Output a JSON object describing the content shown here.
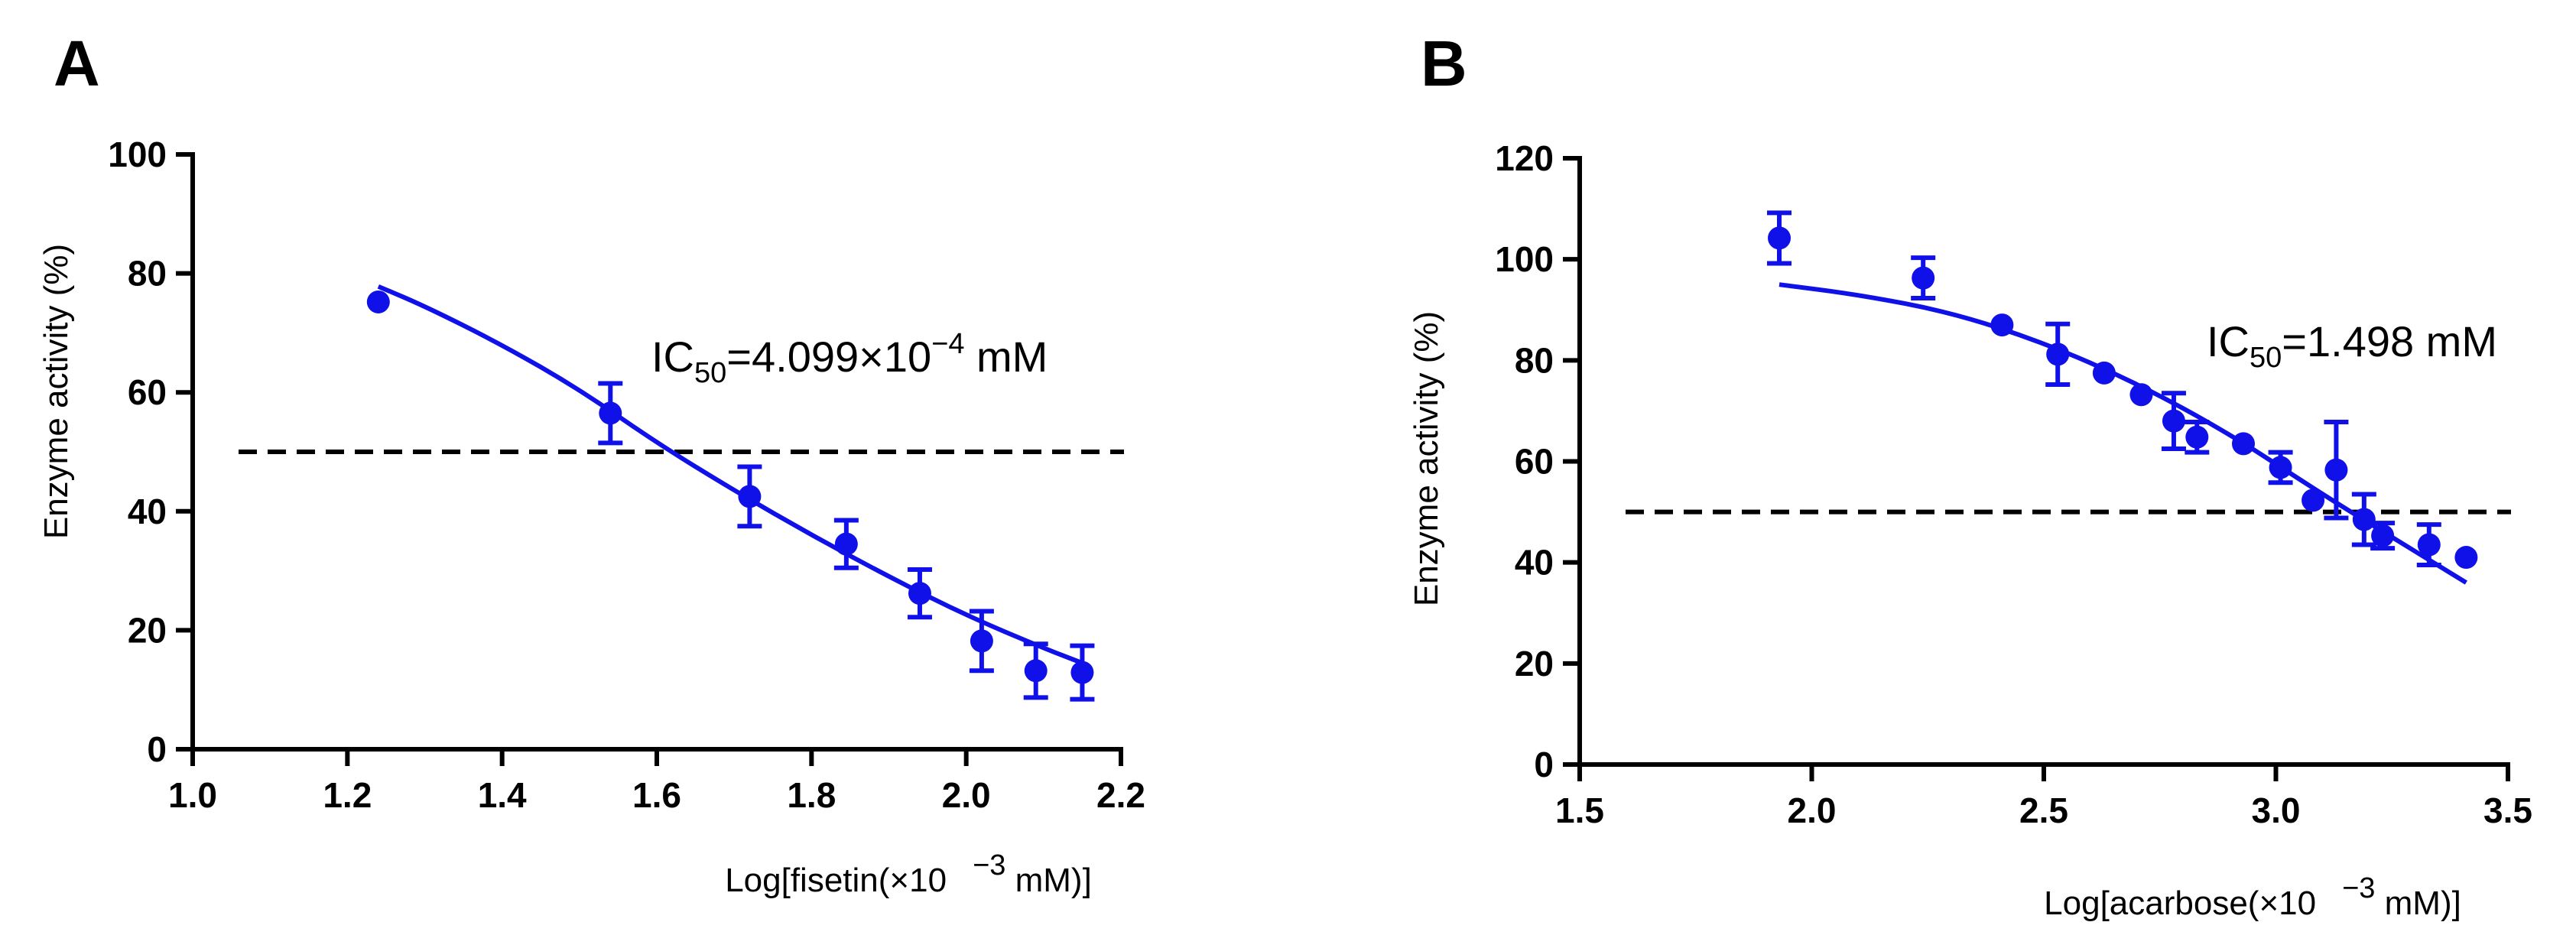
{
  "colors": {
    "series": "#1010e8",
    "axis": "#000000"
  },
  "chart_data": [
    {
      "type": "scatter",
      "panel_label": "A",
      "xlabel": "Log[fisetin(×10 −3 mM)]",
      "xlabel_parts": {
        "pre": "Log[fisetin(×10",
        "sup": "−3",
        "post": " mM)]"
      },
      "ylabel": "Enzyme activity (%)",
      "xlim": [
        1.0,
        2.2
      ],
      "ylim": [
        0,
        100
      ],
      "x_ticks": [
        "1.0",
        "1.2",
        "1.4",
        "1.6",
        "1.8",
        "2.0",
        "2.2"
      ],
      "y_ticks": [
        "0",
        "20",
        "40",
        "60",
        "80",
        "100"
      ],
      "reference_line_y": 50,
      "annotation": {
        "pre": "IC",
        "sub": "50",
        "mid": "=4.099×10",
        "sup": "−4",
        "post": " mM"
      },
      "points": [
        {
          "x": 1.24,
          "y": 75.2,
          "err": 0
        },
        {
          "x": 1.54,
          "y": 56.5,
          "err": 5
        },
        {
          "x": 1.72,
          "y": 42.5,
          "err": 5
        },
        {
          "x": 1.845,
          "y": 34.5,
          "err": 4
        },
        {
          "x": 1.94,
          "y": 26.2,
          "err": 4
        },
        {
          "x": 2.02,
          "y": 18.2,
          "err": 5
        },
        {
          "x": 2.09,
          "y": 13.2,
          "err": 4.5
        },
        {
          "x": 2.15,
          "y": 12.9,
          "err": 4.5
        }
      ],
      "fit_curve": {
        "x": [
          1.24,
          1.3,
          1.4,
          1.5,
          1.6,
          1.7,
          1.8,
          1.9,
          2.0,
          2.1,
          2.15
        ],
        "y": [
          77.8,
          74.5,
          68.0,
          60.5,
          51.5,
          43.5,
          36.0,
          29.0,
          22.5,
          17.0,
          14.5
        ]
      }
    },
    {
      "type": "scatter",
      "panel_label": "B",
      "xlabel": "Log[acarbose(×10 −3 mM)]",
      "xlabel_parts": {
        "pre": "Log[acarbose(×10",
        "sup": "−3",
        "post": " mM)]"
      },
      "ylabel": "Enzyme activity (%)",
      "xlim": [
        1.5,
        3.5
      ],
      "ylim": [
        0,
        120
      ],
      "x_ticks": [
        "1.5",
        "2.0",
        "2.5",
        "3.0",
        "3.5"
      ],
      "y_ticks": [
        "0",
        "20",
        "40",
        "60",
        "80",
        "100",
        "120"
      ],
      "reference_line_y": 50,
      "annotation": {
        "pre": "IC",
        "sub": "50",
        "mid": "=1.498 mM",
        "sup": "",
        "post": ""
      },
      "points": [
        {
          "x": 1.93,
          "y": 104.2,
          "err": 5
        },
        {
          "x": 2.24,
          "y": 96.3,
          "err": 4
        },
        {
          "x": 2.41,
          "y": 87.0,
          "err": 0
        },
        {
          "x": 2.53,
          "y": 81.2,
          "err": 6
        },
        {
          "x": 2.63,
          "y": 77.5,
          "err": 0
        },
        {
          "x": 2.71,
          "y": 73.2,
          "err": 0
        },
        {
          "x": 2.78,
          "y": 68.0,
          "err": 5.5
        },
        {
          "x": 2.83,
          "y": 64.8,
          "err": 3
        },
        {
          "x": 2.93,
          "y": 63.5,
          "err": 0
        },
        {
          "x": 3.01,
          "y": 58.8,
          "err": 3
        },
        {
          "x": 3.08,
          "y": 52.3,
          "err": 0
        },
        {
          "x": 3.13,
          "y": 58.3,
          "err": 9.5
        },
        {
          "x": 3.19,
          "y": 48.5,
          "err": 5
        },
        {
          "x": 3.23,
          "y": 45.3,
          "err": 2.5
        },
        {
          "x": 3.33,
          "y": 43.5,
          "err": 4
        },
        {
          "x": 3.41,
          "y": 41.0,
          "err": 0
        }
      ],
      "fit_curve": {
        "x": [
          1.93,
          2.1,
          2.3,
          2.5,
          2.7,
          2.9,
          3.1,
          3.25,
          3.41
        ],
        "y": [
          95.0,
          93.0,
          89.5,
          83.5,
          75.5,
          65.5,
          53.5,
          45.0,
          36.0
        ]
      }
    }
  ]
}
